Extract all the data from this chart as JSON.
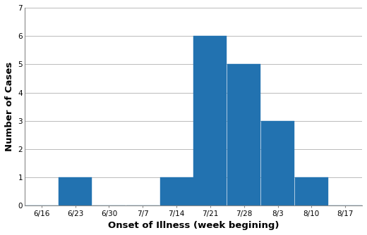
{
  "categories": [
    "6/16",
    "6/23",
    "6/30",
    "7/7",
    "7/14",
    "7/21",
    "7/28",
    "8/3",
    "8/10",
    "8/17"
  ],
  "values": [
    0,
    1,
    0,
    0,
    1,
    6,
    5,
    3,
    1,
    0
  ],
  "bar_color": "#2272b0",
  "xlabel": "Onset of Illness (week begining)",
  "ylabel": "Number of Cases",
  "ylim": [
    0,
    7
  ],
  "yticks": [
    0,
    1,
    2,
    3,
    4,
    5,
    6,
    7
  ],
  "background_color": "#ffffff",
  "grid_color": "#b0b0b0",
  "xlabel_fontsize": 9.5,
  "ylabel_fontsize": 9.5,
  "tick_fontsize": 7.5
}
